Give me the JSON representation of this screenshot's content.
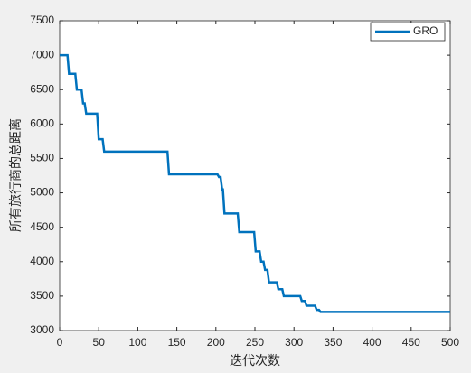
{
  "chart_data": {
    "type": "line",
    "xlabel": "迭代次数",
    "ylabel": "所有旅行商的总距离",
    "x": [
      0,
      10,
      12,
      20,
      22,
      28,
      30,
      32,
      34,
      48,
      50,
      55,
      57,
      138,
      140,
      202,
      204,
      206,
      208,
      209,
      211,
      228,
      230,
      249,
      251,
      256,
      258,
      261,
      263,
      266,
      268,
      278,
      280,
      285,
      287,
      308,
      310,
      314,
      316,
      327,
      329,
      332,
      334,
      500
    ],
    "series": [
      {
        "name": "GRO",
        "color": "#0072bd",
        "values": [
          7000,
          7000,
          6730,
          6730,
          6500,
          6500,
          6300,
          6300,
          6150,
          6150,
          5780,
          5780,
          5600,
          5600,
          5270,
          5270,
          5230,
          5230,
          5050,
          5050,
          4700,
          4700,
          4430,
          4430,
          4150,
          4150,
          4000,
          4000,
          3880,
          3880,
          3700,
          3700,
          3600,
          3600,
          3500,
          3500,
          3430,
          3430,
          3360,
          3360,
          3300,
          3300,
          3270,
          3270
        ]
      }
    ],
    "xlim": [
      0,
      500
    ],
    "ylim": [
      3000,
      7500
    ],
    "xticks": [
      0,
      50,
      100,
      150,
      200,
      250,
      300,
      350,
      400,
      450,
      500
    ],
    "yticks": [
      3000,
      3500,
      4000,
      4500,
      5000,
      5500,
      6000,
      6500,
      7000,
      7500
    ],
    "legend": "upper-right"
  }
}
